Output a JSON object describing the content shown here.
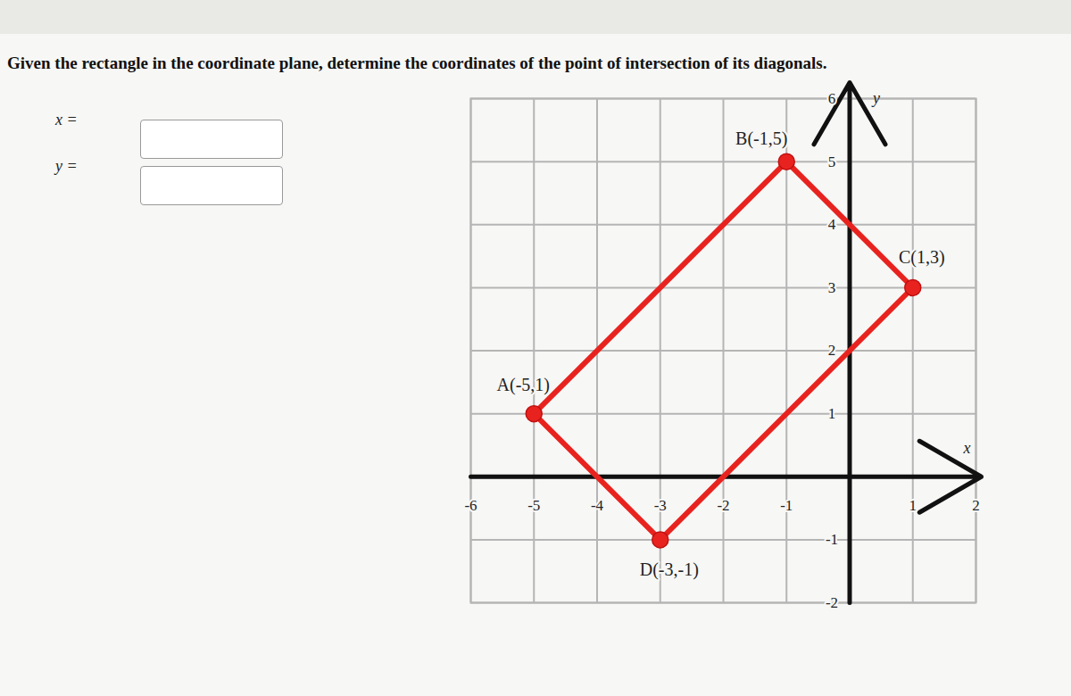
{
  "chart_data": {
    "type": "polygon",
    "title": "Given the rectangle in the coordinate plane, determine the coordinates of the point of intersection of its diagonals.",
    "answer_fields": [
      "x =",
      "y ="
    ],
    "xlabel": "x",
    "ylabel": "y",
    "points": {
      "labels": [
        "A(-5,1)",
        "B(-1,5)",
        "C(1,3)",
        "D(-3,-1)"
      ],
      "x": [
        -5,
        -1,
        1,
        -3
      ],
      "y": [
        1,
        5,
        3,
        -1
      ]
    },
    "color": "#e8231f",
    "marker": "circle",
    "xlim": [
      -6,
      2
    ],
    "ylim": [
      -2,
      6
    ],
    "xticks": [
      -6,
      -5,
      -4,
      -3,
      -2,
      -1,
      1,
      2
    ],
    "yticks": [
      -2,
      -1,
      1,
      2,
      3,
      4,
      5,
      6
    ],
    "grid": true
  }
}
